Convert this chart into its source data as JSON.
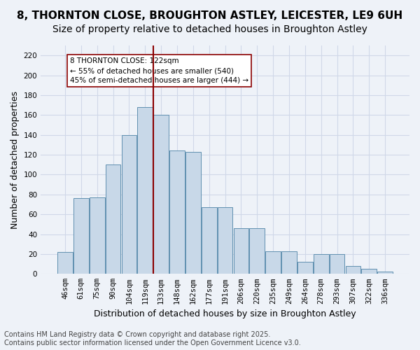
{
  "title1": "8, THORNTON CLOSE, BROUGHTON ASTLEY, LEICESTER, LE9 6UH",
  "title2": "Size of property relative to detached houses in Broughton Astley",
  "xlabel": "Distribution of detached houses by size in Broughton Astley",
  "ylabel": "Number of detached properties",
  "bar_values": [
    22,
    76,
    77,
    110,
    140,
    168,
    160,
    124,
    123,
    67,
    67,
    46,
    46,
    23,
    23,
    12,
    20,
    20,
    8,
    5,
    2
  ],
  "x_labels": [
    "46sqm",
    "61sqm",
    "75sqm",
    "90sqm",
    "104sqm",
    "119sqm",
    "133sqm",
    "148sqm",
    "162sqm",
    "177sqm",
    "191sqm",
    "206sqm",
    "220sqm",
    "235sqm",
    "249sqm",
    "264sqm",
    "278sqm",
    "293sqm",
    "307sqm",
    "322sqm",
    "336sqm"
  ],
  "bar_color": "#c8d8e8",
  "bar_edge_color": "#6090b0",
  "vline_x": 5.5,
  "vline_color": "#8b0000",
  "annotation_text": "8 THORNTON CLOSE: 122sqm\n← 55% of detached houses are smaller (540)\n45% of semi-detached houses are larger (444) →",
  "annotation_box_color": "#ffffff",
  "annotation_box_edge": "#8b0000",
  "ylim": [
    0,
    230
  ],
  "yticks": [
    0,
    20,
    40,
    60,
    80,
    100,
    120,
    140,
    160,
    180,
    200,
    220
  ],
  "grid_color": "#d0d8e8",
  "bg_color": "#eef2f8",
  "footer": "Contains HM Land Registry data © Crown copyright and database right 2025.\nContains public sector information licensed under the Open Government Licence v3.0.",
  "title_fontsize": 11,
  "subtitle_fontsize": 10,
  "axis_label_fontsize": 9,
  "tick_fontsize": 7.5,
  "footer_fontsize": 7
}
